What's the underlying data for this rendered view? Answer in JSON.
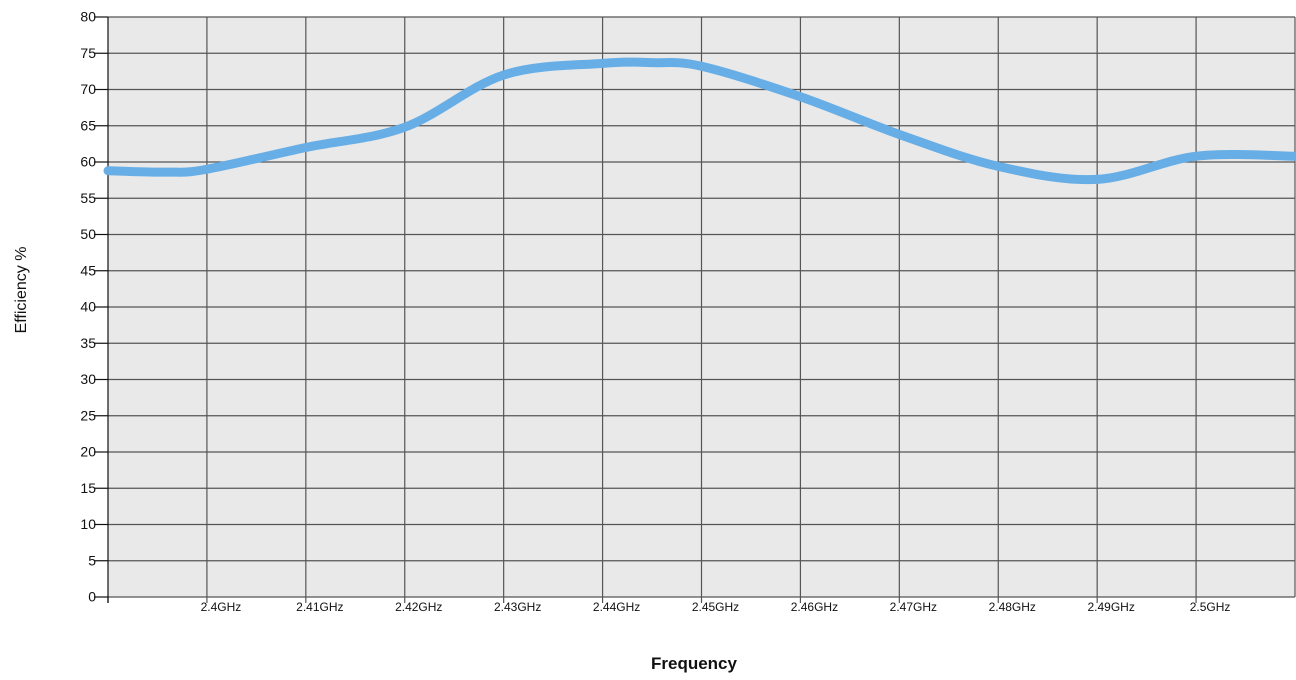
{
  "chart_data": {
    "type": "line",
    "xlabel": "Frequency",
    "ylabel": "Efficiency %",
    "x_unit": "GHz",
    "xlim": [
      2.39,
      2.51
    ],
    "ylim": [
      0,
      80
    ],
    "y_ticks": [
      0,
      5,
      10,
      15,
      20,
      25,
      30,
      35,
      40,
      45,
      50,
      55,
      60,
      65,
      70,
      75,
      80
    ],
    "x_ticks": [
      2.4,
      2.41,
      2.42,
      2.43,
      2.44,
      2.45,
      2.46,
      2.47,
      2.48,
      2.49,
      2.5
    ],
    "x_tick_labels": [
      "2.4GHz",
      "2.41GHz",
      "2.42GHz",
      "2.43GHz",
      "2.44GHz",
      "2.45GHz",
      "2.46GHz",
      "2.47GHz",
      "2.48GHz",
      "2.49GHz",
      "2.5GHz"
    ],
    "grid": true,
    "series": [
      {
        "color": "#67aee6",
        "x": [
          2.39,
          2.396,
          2.4,
          2.41,
          2.42,
          2.43,
          2.44,
          2.445,
          2.45,
          2.46,
          2.47,
          2.48,
          2.49,
          2.5,
          2.51
        ],
        "values": [
          58.8,
          58.6,
          59,
          62,
          64.8,
          72,
          73.6,
          73.7,
          73.2,
          69,
          63.8,
          59.4,
          57.6,
          60.8,
          60.8
        ]
      }
    ]
  },
  "colors": {
    "plot_background": "#e9e9e9",
    "grid": "#555555",
    "line": "#67aee6"
  }
}
